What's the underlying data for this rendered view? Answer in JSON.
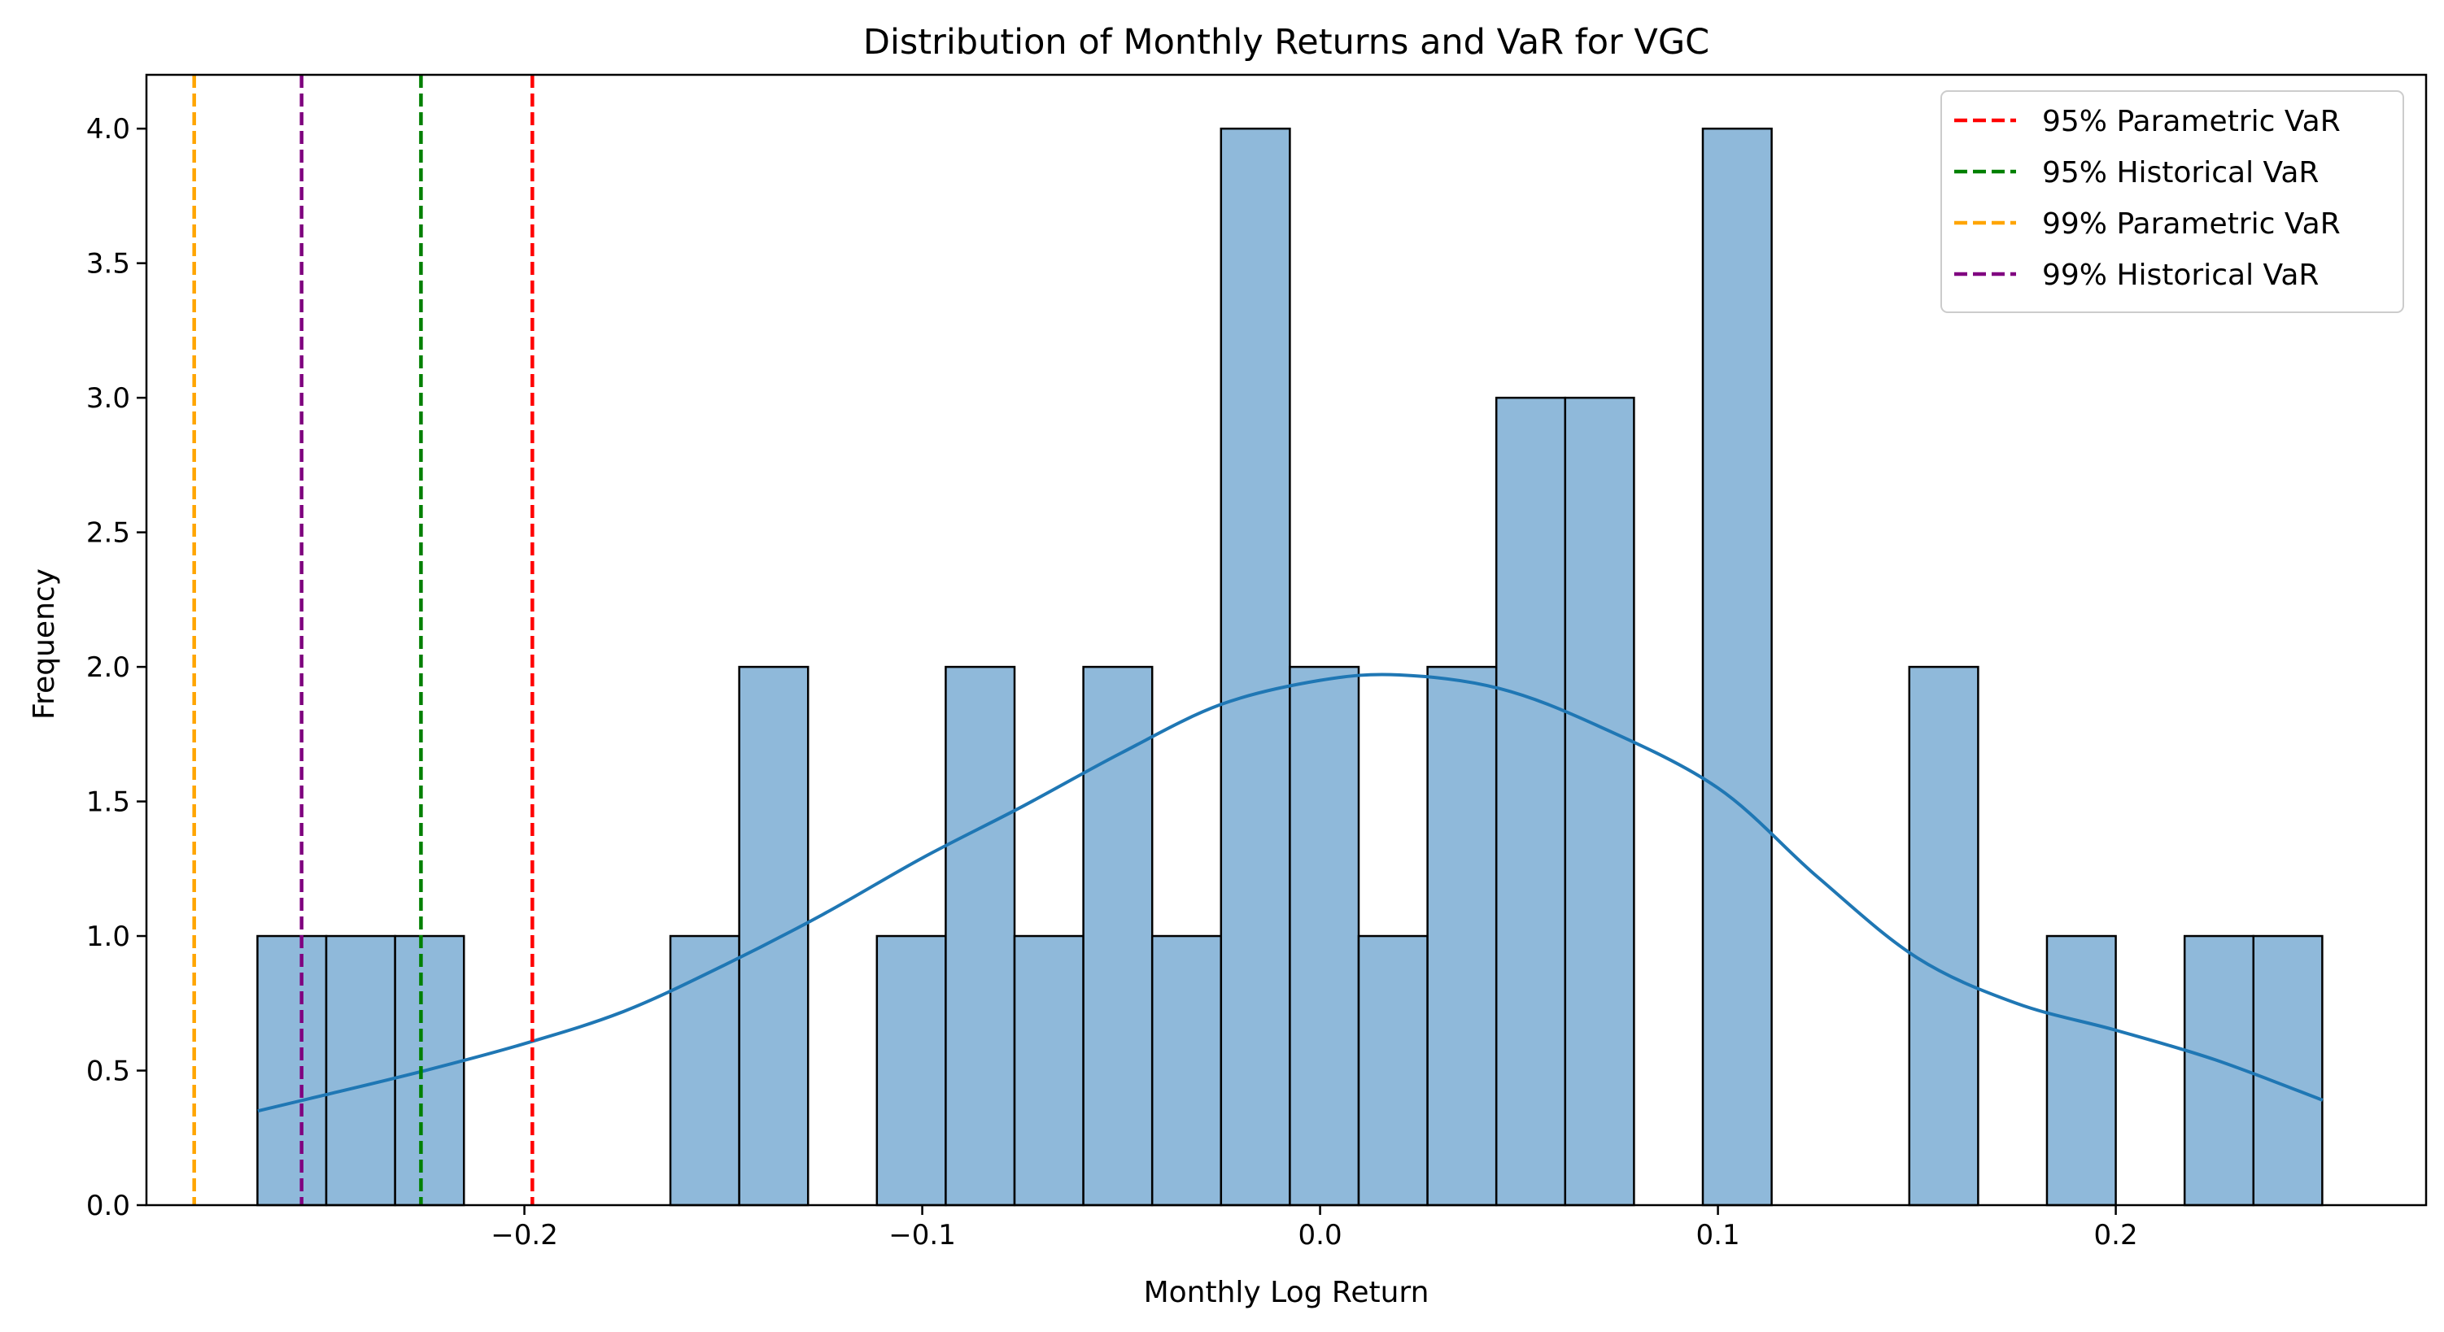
{
  "chart_data": {
    "type": "bar",
    "title": "Distribution of Monthly Returns and VaR for VGC",
    "xlabel": "Monthly Log Return",
    "ylabel": "Frequency",
    "xlim": [
      -0.295,
      0.278
    ],
    "ylim": [
      0,
      4.2
    ],
    "x_ticks": [
      -0.2,
      -0.1,
      0.0,
      0.1,
      0.2
    ],
    "x_tick_labels": [
      "−0.2",
      "−0.1",
      "0.0",
      "0.1",
      "0.2"
    ],
    "y_ticks": [
      0,
      0.5,
      1,
      1.5,
      2,
      2.5,
      3,
      3.5,
      4
    ],
    "y_tick_labels": [
      "0.0",
      "0.5",
      "1.0",
      "1.5",
      "2.0",
      "2.5",
      "3.0",
      "3.5",
      "4.0"
    ],
    "grid": false,
    "legend_position": "top-right",
    "histogram": {
      "bin_edges": [
        -0.2671,
        -0.2498,
        -0.2325,
        -0.2152,
        -0.1979,
        -0.1806,
        -0.1633,
        -0.146,
        -0.1287,
        -0.1114,
        -0.0941,
        -0.0768,
        -0.0595,
        -0.0422,
        -0.0249,
        -0.0076,
        0.0097,
        0.027,
        0.0443,
        0.0616,
        0.0789,
        0.0962,
        0.1135,
        0.1308,
        0.1481,
        0.1654,
        0.1827,
        0.2,
        0.2173,
        0.2346,
        0.2519
      ],
      "counts": [
        1,
        1,
        1,
        0,
        0,
        0,
        1,
        2,
        0,
        1,
        2,
        1,
        2,
        1,
        4,
        2,
        1,
        2,
        3,
        3,
        0,
        4,
        0,
        0,
        2,
        0,
        1,
        0,
        1,
        1
      ],
      "fill_color": "#8fb9da",
      "edge_color": "#000000"
    },
    "kde_curve": {
      "color": "#1f77b4",
      "x": [
        -0.267,
        -0.25,
        -0.225,
        -0.2,
        -0.175,
        -0.15,
        -0.125,
        -0.1,
        -0.075,
        -0.05,
        -0.025,
        0.0,
        0.02,
        0.045,
        0.07,
        0.1,
        0.125,
        0.15,
        0.175,
        0.2,
        0.225,
        0.252
      ],
      "y": [
        0.35,
        0.41,
        0.5,
        0.6,
        0.72,
        0.89,
        1.08,
        1.29,
        1.48,
        1.68,
        1.86,
        1.95,
        1.97,
        1.92,
        1.78,
        1.55,
        1.22,
        0.92,
        0.75,
        0.65,
        0.54,
        0.39
      ]
    },
    "vlines": [
      {
        "name": "95% Parametric VaR",
        "x": -0.198,
        "color": "#ff0000"
      },
      {
        "name": "95% Historical VaR",
        "x": -0.226,
        "color": "#008000"
      },
      {
        "name": "99% Parametric VaR",
        "x": -0.283,
        "color": "#ffa500"
      },
      {
        "name": "99% Historical VaR",
        "x": -0.256,
        "color": "#800080"
      }
    ]
  }
}
